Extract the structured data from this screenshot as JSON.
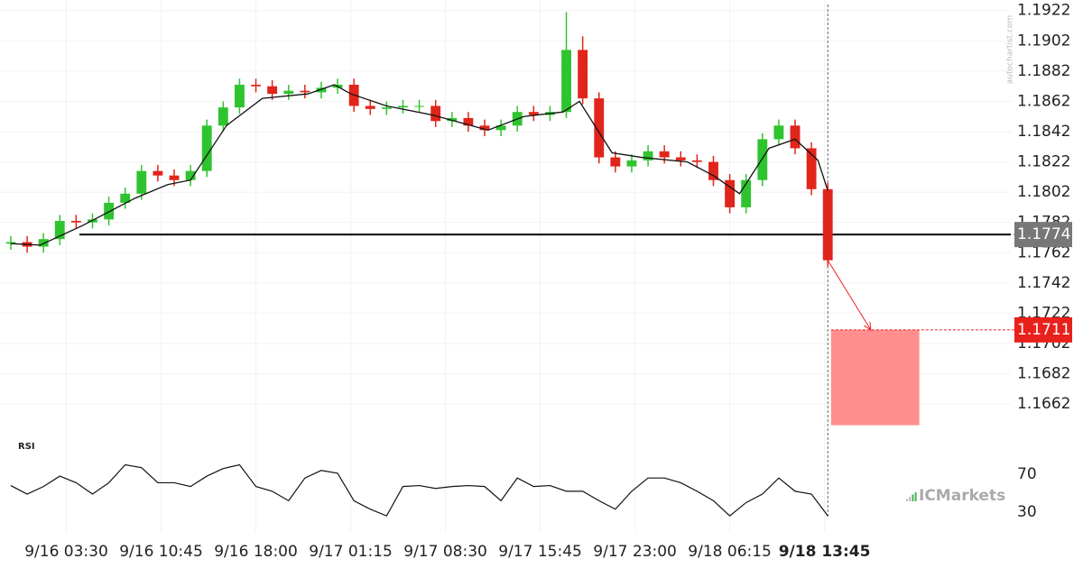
{
  "chart_data": [
    {
      "type": "candlestick",
      "xlim": [
        -3.3,
        306
      ],
      "xticks": [
        {
          "value": 17,
          "label": "9/16 03:30"
        },
        {
          "value": 46,
          "label": "9/16 10:45"
        },
        {
          "value": 75,
          "label": "9/16 18:00"
        },
        {
          "value": 104,
          "label": "9/17 01:15"
        },
        {
          "value": 133,
          "label": "9/17 08:30"
        },
        {
          "value": 162,
          "label": "9/17 15:45"
        },
        {
          "value": 191,
          "label": "9/17 23:00"
        },
        {
          "value": 220,
          "label": "9/18 06:15"
        },
        {
          "value": 249,
          "label": "9/18 13:45"
        }
      ],
      "ylim": [
        1.1643,
        1.1929
      ],
      "yticks": [
        1.1922,
        1.1902,
        1.1882,
        1.1862,
        1.1842,
        1.1822,
        1.1802,
        1.1782,
        1.1762,
        1.1742,
        1.1722,
        1.1702,
        1.1682,
        1.1662
      ],
      "grid": true,
      "up_color": "#2fc42f",
      "down_color": "#e0251b",
      "x": [
        0,
        5,
        10,
        15,
        20,
        25,
        30,
        35,
        40,
        45,
        50,
        55,
        60,
        65,
        70,
        75,
        80,
        85,
        90,
        95,
        100,
        105,
        110,
        115,
        120,
        125,
        130,
        135,
        140,
        145,
        150,
        155,
        160,
        165,
        170,
        175,
        180,
        185,
        190,
        195,
        200,
        205,
        210,
        215,
        220,
        225,
        230,
        235,
        240,
        245,
        250
      ],
      "open": [
        1.1768,
        1.1769,
        1.1766,
        1.1771,
        1.1783,
        1.1782,
        1.1784,
        1.1795,
        1.1801,
        1.1816,
        1.1813,
        1.181,
        1.1816,
        1.1846,
        1.1858,
        1.1873,
        1.1872,
        1.1867,
        1.1869,
        1.1868,
        1.1871,
        1.1873,
        1.1859,
        1.1857,
        1.1858,
        1.1859,
        1.1859,
        1.1849,
        1.1851,
        1.1846,
        1.1843,
        1.1846,
        1.1855,
        1.1853,
        1.1855,
        1.1896,
        1.1864,
        1.1825,
        1.1819,
        1.1823,
        1.1829,
        1.1825,
        1.1823,
        1.1822,
        1.181,
        1.1792,
        1.181,
        1.1837,
        1.1846,
        1.1831,
        1.1804
      ],
      "high": [
        1.1773,
        1.1773,
        1.1775,
        1.1787,
        1.1787,
        1.1788,
        1.1799,
        1.1805,
        1.182,
        1.182,
        1.1817,
        1.182,
        1.185,
        1.1862,
        1.1877,
        1.1877,
        1.1876,
        1.1873,
        1.1873,
        1.1875,
        1.1877,
        1.1877,
        1.1863,
        1.1862,
        1.1863,
        1.1863,
        1.1863,
        1.1855,
        1.1855,
        1.185,
        1.185,
        1.1859,
        1.1859,
        1.1859,
        1.1921,
        1.1905,
        1.1868,
        1.1829,
        1.1827,
        1.1833,
        1.1833,
        1.1829,
        1.1827,
        1.1826,
        1.1814,
        1.1814,
        1.1841,
        1.185,
        1.185,
        1.1835,
        1.1808
      ],
      "low": [
        1.1764,
        1.1762,
        1.1762,
        1.1767,
        1.1778,
        1.1778,
        1.178,
        1.1791,
        1.1797,
        1.1809,
        1.1806,
        1.1806,
        1.1812,
        1.1842,
        1.1854,
        1.1868,
        1.1863,
        1.1863,
        1.1864,
        1.1864,
        1.1867,
        1.1855,
        1.1853,
        1.1853,
        1.1854,
        1.1855,
        1.1845,
        1.1845,
        1.1842,
        1.1839,
        1.1839,
        1.1842,
        1.1849,
        1.1849,
        1.1851,
        1.186,
        1.1821,
        1.1815,
        1.1815,
        1.1819,
        1.1821,
        1.1819,
        1.1818,
        1.1806,
        1.1788,
        1.1788,
        1.1806,
        1.1833,
        1.1827,
        1.18,
        1.1753
      ],
      "close": [
        1.1769,
        1.1766,
        1.1771,
        1.1783,
        1.1782,
        1.1784,
        1.1795,
        1.1801,
        1.1816,
        1.1813,
        1.181,
        1.1816,
        1.1846,
        1.1858,
        1.1873,
        1.1872,
        1.1867,
        1.1869,
        1.1868,
        1.1871,
        1.1873,
        1.1859,
        1.1857,
        1.1858,
        1.1859,
        1.1859,
        1.1849,
        1.1851,
        1.1846,
        1.1843,
        1.1846,
        1.1855,
        1.1853,
        1.1855,
        1.1896,
        1.1864,
        1.1825,
        1.1819,
        1.1823,
        1.1829,
        1.1825,
        1.1823,
        1.1822,
        1.181,
        1.1792,
        1.181,
        1.1837,
        1.1846,
        1.1831,
        1.1804,
        1.1757
      ],
      "ma": {
        "color": "#111111",
        "x": [
          0,
          9,
          22,
          38,
          48,
          55,
          66,
          77,
          91,
          99,
          104,
          115,
          129,
          146,
          157,
          169,
          174,
          184,
          193,
          207,
          215,
          223,
          232,
          240,
          247,
          250
        ],
        "values": [
          1.1768,
          1.1767,
          1.178,
          1.1798,
          1.1807,
          1.181,
          1.1846,
          1.1864,
          1.1867,
          1.1873,
          1.1867,
          1.1859,
          1.1853,
          1.1843,
          1.1852,
          1.1855,
          1.1862,
          1.1828,
          1.1825,
          1.1822,
          1.1813,
          1.1801,
          1.1831,
          1.1837,
          1.1823,
          1.1803
        ]
      },
      "level": 1.1774,
      "level_from_x": 21,
      "current_price": 1.1774,
      "current_color": "#777777",
      "target": 1.1711,
      "target_color": "#e8211c",
      "target_zone": {
        "x": [
          251,
          278
        ],
        "low": 1.1648,
        "high": 1.1711,
        "color": "#ff8f8f"
      },
      "watermark": "autochartist.com",
      "brand": "ICMarkets"
    },
    {
      "type": "line",
      "title": "RSI",
      "xlim": [
        -3.3,
        306
      ],
      "ylim": [
        9,
        90
      ],
      "yticks": [
        70,
        30
      ],
      "color": "#111111",
      "x": [
        0,
        5,
        10,
        15,
        20,
        25,
        30,
        35,
        40,
        45,
        50,
        55,
        60,
        65,
        70,
        75,
        80,
        85,
        90,
        95,
        100,
        105,
        110,
        115,
        120,
        125,
        130,
        135,
        140,
        145,
        150,
        155,
        160,
        165,
        170,
        175,
        180,
        185,
        190,
        195,
        200,
        205,
        210,
        215,
        220,
        225,
        230,
        235,
        240,
        245,
        250
      ],
      "values": [
        58,
        49,
        57,
        68,
        61,
        49,
        61,
        80,
        77,
        61,
        61,
        57,
        68,
        76,
        80,
        57,
        52,
        42,
        66,
        74,
        71,
        42,
        33,
        26,
        57,
        58,
        55,
        57,
        58,
        57,
        42,
        66,
        57,
        58,
        52,
        52,
        42,
        33,
        52,
        66,
        66,
        61,
        52,
        42,
        26,
        40,
        49,
        66,
        52,
        49,
        26
      ]
    }
  ]
}
